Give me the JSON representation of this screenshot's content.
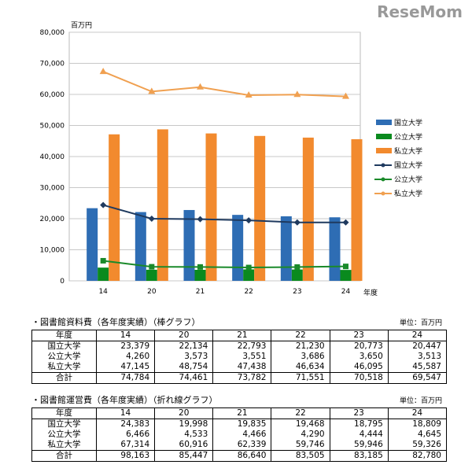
{
  "chart_data": {
    "type": "bar+line",
    "unit_label": "百万円",
    "xlabel": "年度",
    "ylim": [
      0,
      80000
    ],
    "yticks": [
      "0",
      "10,000",
      "20,000",
      "30,000",
      "40,000",
      "50,000",
      "60,000",
      "70,000",
      "80,000"
    ],
    "categories": [
      "14",
      "20",
      "21",
      "22",
      "23",
      "24"
    ],
    "bar_series": [
      {
        "name": "国立大学",
        "color": "#2e6db4",
        "values": [
          23379,
          22134,
          22793,
          21230,
          20773,
          20447
        ]
      },
      {
        "name": "公立大学",
        "color": "#0a8a1e",
        "values": [
          4260,
          3573,
          3551,
          3686,
          3650,
          3513
        ]
      },
      {
        "name": "私立大学",
        "color": "#f28a2e",
        "values": [
          47145,
          48754,
          47438,
          46634,
          46095,
          45587
        ]
      }
    ],
    "line_series": [
      {
        "name": "国立大学",
        "color": "#1f3a5f",
        "marker": "diamond",
        "values": [
          24383,
          19998,
          19835,
          19468,
          18795,
          18809
        ]
      },
      {
        "name": "公立大学",
        "color": "#1a8a2a",
        "marker": "square",
        "values": [
          6466,
          4533,
          4466,
          4290,
          4444,
          4645
        ]
      },
      {
        "name": "私立大学",
        "color": "#f0a050",
        "marker": "triangle",
        "values": [
          67314,
          60916,
          62339,
          59746,
          59946,
          59326
        ]
      }
    ],
    "legend": "right"
  },
  "tables": [
    {
      "caption": "・図書館資料費（各年度実績）（棒グラフ）",
      "unit": "単位：百万円",
      "header": [
        "年度",
        "14",
        "20",
        "21",
        "22",
        "23",
        "24"
      ],
      "rows": [
        [
          "国立大学",
          "23,379",
          "22,134",
          "22,793",
          "21,230",
          "20,773",
          "20,447"
        ],
        [
          "公立大学",
          "4,260",
          "3,573",
          "3,551",
          "3,686",
          "3,650",
          "3,513"
        ],
        [
          "私立大学",
          "47,145",
          "48,754",
          "47,438",
          "46,634",
          "46,095",
          "45,587"
        ]
      ],
      "total": [
        "合計",
        "74,784",
        "74,461",
        "73,782",
        "71,551",
        "70,518",
        "69,547"
      ]
    },
    {
      "caption": "・図書館運営費（各年度実績）（折れ線グラフ）",
      "unit": "単位：百万円",
      "header": [
        "年度",
        "14",
        "20",
        "21",
        "22",
        "23",
        "24"
      ],
      "rows": [
        [
          "国立大学",
          "24,383",
          "19,998",
          "19,835",
          "19,468",
          "18,795",
          "18,809"
        ],
        [
          "公立大学",
          "6,466",
          "4,533",
          "4,466",
          "4,290",
          "4,444",
          "4,645"
        ],
        [
          "私立大学",
          "67,314",
          "60,916",
          "62,339",
          "59,746",
          "59,946",
          "59,326"
        ]
      ],
      "total": [
        "合計",
        "98,163",
        "85,447",
        "86,640",
        "83,505",
        "83,185",
        "82,780"
      ]
    }
  ],
  "watermark": "ReseMom"
}
